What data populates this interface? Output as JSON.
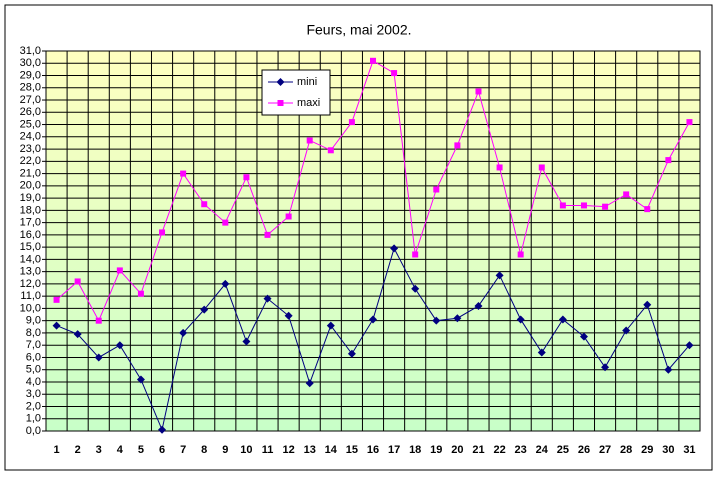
{
  "chart_data": {
    "type": "line",
    "title": "Feurs, mai 2002.",
    "categories": [
      "1",
      "2",
      "3",
      "4",
      "5",
      "6",
      "7",
      "8",
      "9",
      "10",
      "11",
      "12",
      "13",
      "14",
      "15",
      "16",
      "17",
      "18",
      "19",
      "20",
      "21",
      "22",
      "23",
      "24",
      "25",
      "26",
      "27",
      "28",
      "29",
      "30",
      "31"
    ],
    "series": [
      {
        "name": "mini",
        "color": "#000080",
        "marker": "diamond",
        "values": [
          8.6,
          7.9,
          6.0,
          7.0,
          4.2,
          0.1,
          8.0,
          9.9,
          12.0,
          7.3,
          10.8,
          9.4,
          3.9,
          8.6,
          6.3,
          9.1,
          14.9,
          11.6,
          9.0,
          9.2,
          10.2,
          12.7,
          9.1,
          6.4,
          9.1,
          7.7,
          5.2,
          8.2,
          10.3,
          5.0,
          7.0
        ]
      },
      {
        "name": "maxi",
        "color": "#ff00ff",
        "marker": "square",
        "values": [
          10.7,
          12.2,
          9.0,
          13.1,
          11.2,
          16.2,
          21.0,
          18.5,
          17.0,
          20.7,
          16.0,
          17.5,
          23.7,
          22.9,
          25.2,
          30.2,
          29.2,
          14.4,
          19.7,
          23.3,
          27.7,
          21.5,
          14.4,
          21.5,
          18.4,
          18.4,
          18.3,
          19.3,
          18.1,
          22.1,
          25.2
        ]
      }
    ],
    "ylim": [
      0,
      31
    ],
    "yticks": [
      {
        "value": 0,
        "label": "0,0"
      },
      {
        "value": 1,
        "label": "1,0"
      },
      {
        "value": 2,
        "label": "2,0"
      },
      {
        "value": 3,
        "label": "3,0"
      },
      {
        "value": 4,
        "label": "4,0"
      },
      {
        "value": 5,
        "label": "5,0"
      },
      {
        "value": 6,
        "label": "6,0"
      },
      {
        "value": 7,
        "label": "7,0"
      },
      {
        "value": 8,
        "label": "8,0"
      },
      {
        "value": 9,
        "label": "9,0"
      },
      {
        "value": 10,
        "label": "10,0"
      },
      {
        "value": 11,
        "label": "11,0"
      },
      {
        "value": 12,
        "label": "12,0"
      },
      {
        "value": 13,
        "label": "13,0"
      },
      {
        "value": 14,
        "label": "14,0"
      },
      {
        "value": 15,
        "label": "15,0"
      },
      {
        "value": 16,
        "label": "16,0"
      },
      {
        "value": 17,
        "label": "17,0"
      },
      {
        "value": 18,
        "label": "18,0"
      },
      {
        "value": 19,
        "label": "19,0"
      },
      {
        "value": 20,
        "label": "20,0"
      },
      {
        "value": 21,
        "label": "21,0"
      },
      {
        "value": 22,
        "label": "22,0"
      },
      {
        "value": 23,
        "label": "23,0"
      },
      {
        "value": 24,
        "label": "24,0"
      },
      {
        "value": 25,
        "label": "25,0"
      },
      {
        "value": 26,
        "label": "26,0"
      },
      {
        "value": 27,
        "label": "27,0"
      },
      {
        "value": 28,
        "label": "28,0"
      },
      {
        "value": 29,
        "label": "29,0"
      },
      {
        "value": 30,
        "label": "30,0"
      },
      {
        "value": 31,
        "label": "31,0"
      }
    ],
    "grid": true
  }
}
